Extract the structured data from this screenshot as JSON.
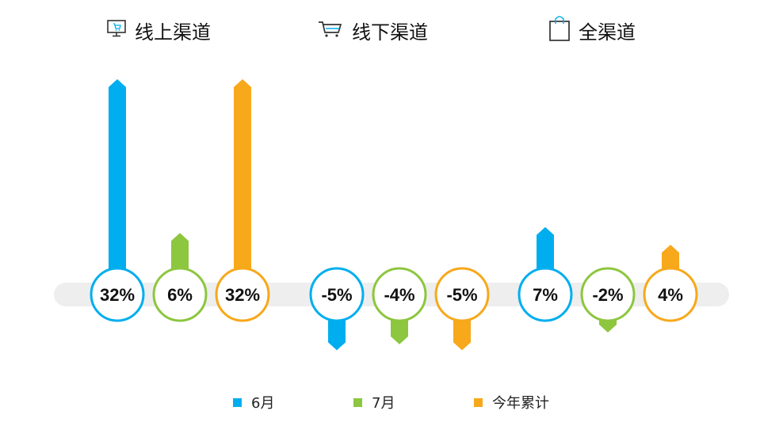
{
  "groups": [
    {
      "title": "线上渠道",
      "icon": "monitor-cart-icon"
    },
    {
      "title": "线下渠道",
      "icon": "shopping-cart-icon"
    },
    {
      "title": "全渠道",
      "icon": "shopping-bag-icon"
    }
  ],
  "legend": [
    {
      "label": "6月",
      "color": "#00aeef"
    },
    {
      "label": "7月",
      "color": "#8dc63f"
    },
    {
      "label": "今年累计",
      "color": "#f7a81b"
    }
  ],
  "chart_data": {
    "type": "bar",
    "categories": [
      "线上渠道",
      "线下渠道",
      "全渠道"
    ],
    "series": [
      {
        "name": "6月",
        "values": [
          32,
          -5,
          7
        ],
        "labels": [
          "32%",
          "-5%",
          "7%"
        ]
      },
      {
        "name": "7月",
        "values": [
          6,
          -4,
          -2
        ],
        "labels": [
          "6%",
          "-4%",
          "-2%"
        ]
      },
      {
        "name": "今年累计",
        "values": [
          32,
          -5,
          4
        ],
        "labels": [
          "32%",
          "-5%",
          "4%"
        ]
      }
    ],
    "colors": [
      "#00aeef",
      "#8dc63f",
      "#f7a81b"
    ],
    "axis_color": "#eeeeee",
    "legend_position": "bottom",
    "grid": false
  }
}
